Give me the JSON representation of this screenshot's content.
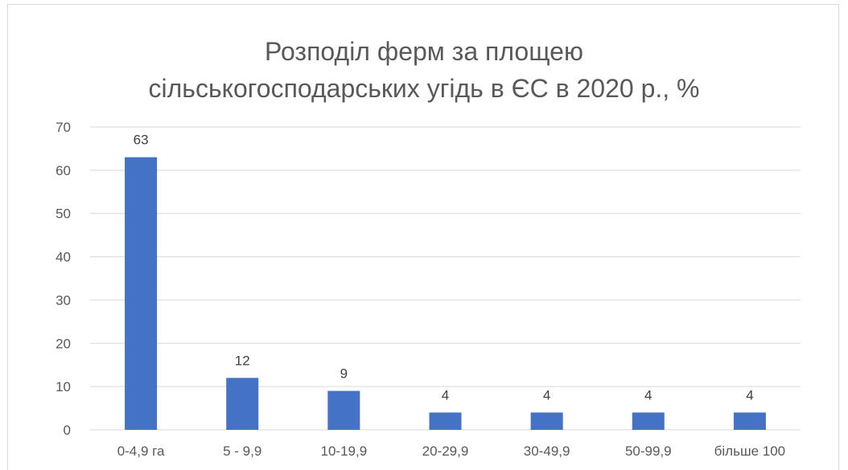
{
  "chart_data": {
    "type": "bar",
    "title_line1": "Розподіл ферм за площею",
    "title_line2": "сільськогосподарських угідь в ЄС в 2020 р., %",
    "categories": [
      "0-4,9 га",
      "5 - 9,9",
      "10-19,9",
      "20-29,9",
      "30-49,9",
      "50-99,9",
      "більше 100"
    ],
    "values": [
      63,
      12,
      9,
      4,
      4,
      4,
      4
    ],
    "data_labels": [
      "63",
      "12",
      "9",
      "4",
      "4",
      "4",
      "4"
    ],
    "ylim": [
      0,
      70
    ],
    "yticks": [
      0,
      10,
      20,
      30,
      40,
      50,
      60,
      70
    ],
    "grid": true,
    "legend": "none",
    "colors": {
      "bar": "#4472C4",
      "grid": "#d9d9d9",
      "text": "#595959"
    }
  }
}
